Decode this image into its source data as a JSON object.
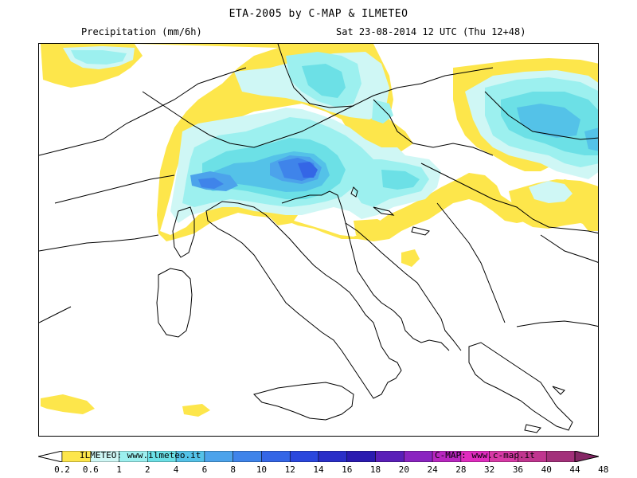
{
  "header": {
    "title": "ETA-2005 by C-MAP & ILMETEO",
    "variable": "Precipitation (mm/6h)",
    "valid_time": "Sat 23-08-2014 12 UTC (Thu 12+48)"
  },
  "legend": {
    "thresholds": [
      "0.2",
      "0.6",
      "1",
      "2",
      "4",
      "6",
      "8",
      "10",
      "12",
      "14",
      "16",
      "18",
      "20",
      "24",
      "28",
      "32",
      "36",
      "40",
      "44",
      "48"
    ],
    "colors": [
      "#fde64b",
      "#cff7f5",
      "#9cf0ef",
      "#6ce0e6",
      "#54c2e8",
      "#4ca3eb",
      "#3f84ea",
      "#3466e6",
      "#2a47dd",
      "#2a2fc8",
      "#2a1bb0",
      "#5a1fb8",
      "#8a24c0",
      "#b826c0",
      "#e02cbf",
      "#d83aa6",
      "#c0358f",
      "#a3307a",
      "#852765"
    ],
    "credit_left": "ILMETEO: www.ilmeteo.it",
    "credit_right": "C-MAP: www.c-map.it"
  }
}
